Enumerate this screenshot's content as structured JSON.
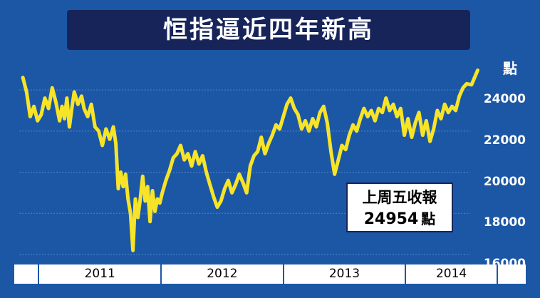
{
  "title": "恒指逼近四年新高",
  "unit_label": "點",
  "callout": {
    "line1": "上周五收報",
    "value": "24954",
    "unit": "點"
  },
  "colors": {
    "background": "#1c57a6",
    "title_box": "#17245a",
    "line": "#f7e428",
    "grid": "#4f86c6"
  },
  "chart_data": {
    "type": "line",
    "title": "恒指逼近四年新高",
    "ylabel": "點",
    "xlabel": "",
    "ylim": [
      16000,
      24800
    ],
    "xlim": [
      2010.77,
      2014.82
    ],
    "yticks": [
      16000,
      18000,
      20000,
      22000,
      24000
    ],
    "ytick_labels": [
      "16000",
      "18000",
      "20000",
      "22000",
      "24000"
    ],
    "xtick_labels": [
      "2011",
      "2012",
      "2013",
      "2014"
    ],
    "xtick_ranges": [
      [
        2010.93,
        2011.93
      ],
      [
        2011.93,
        2012.93
      ],
      [
        2012.93,
        2013.93
      ],
      [
        2013.93,
        2014.68
      ]
    ],
    "grid": "horizontal",
    "series": [
      {
        "values": [
          [
            2010.8,
            24600
          ],
          [
            2010.83,
            23900
          ],
          [
            2010.86,
            22700
          ],
          [
            2010.89,
            23200
          ],
          [
            2010.92,
            22500
          ],
          [
            2010.95,
            22800
          ],
          [
            2010.98,
            23600
          ],
          [
            2011.01,
            23100
          ],
          [
            2011.04,
            24100
          ],
          [
            2011.07,
            23400
          ],
          [
            2011.1,
            22500
          ],
          [
            2011.12,
            23200
          ],
          [
            2011.14,
            22600
          ],
          [
            2011.16,
            23600
          ],
          [
            2011.18,
            22200
          ],
          [
            2011.2,
            23100
          ],
          [
            2011.22,
            23900
          ],
          [
            2011.25,
            23300
          ],
          [
            2011.28,
            23700
          ],
          [
            2011.3,
            23100
          ],
          [
            2011.33,
            22700
          ],
          [
            2011.36,
            23300
          ],
          [
            2011.39,
            22200
          ],
          [
            2011.42,
            22000
          ],
          [
            2011.45,
            21300
          ],
          [
            2011.48,
            22100
          ],
          [
            2011.51,
            21600
          ],
          [
            2011.54,
            22200
          ],
          [
            2011.56,
            21400
          ],
          [
            2011.58,
            19200
          ],
          [
            2011.6,
            20000
          ],
          [
            2011.62,
            19300
          ],
          [
            2011.64,
            19900
          ],
          [
            2011.66,
            18700
          ],
          [
            2011.68,
            18000
          ],
          [
            2011.7,
            16200
          ],
          [
            2011.72,
            18700
          ],
          [
            2011.74,
            17800
          ],
          [
            2011.76,
            18700
          ],
          [
            2011.78,
            19800
          ],
          [
            2011.8,
            18600
          ],
          [
            2011.82,
            19300
          ],
          [
            2011.84,
            17600
          ],
          [
            2011.86,
            19100
          ],
          [
            2011.88,
            18100
          ],
          [
            2011.9,
            18700
          ],
          [
            2011.92,
            18500
          ],
          [
            2011.94,
            19000
          ],
          [
            2011.97,
            19600
          ],
          [
            2012.0,
            20100
          ],
          [
            2012.03,
            20700
          ],
          [
            2012.06,
            20900
          ],
          [
            2012.09,
            21300
          ],
          [
            2012.12,
            20600
          ],
          [
            2012.15,
            20900
          ],
          [
            2012.18,
            20300
          ],
          [
            2012.21,
            21000
          ],
          [
            2012.24,
            20400
          ],
          [
            2012.27,
            20800
          ],
          [
            2012.3,
            20000
          ],
          [
            2012.33,
            19400
          ],
          [
            2012.36,
            18800
          ],
          [
            2012.39,
            18300
          ],
          [
            2012.42,
            18600
          ],
          [
            2012.45,
            19200
          ],
          [
            2012.48,
            19600
          ],
          [
            2012.51,
            19000
          ],
          [
            2012.54,
            19400
          ],
          [
            2012.57,
            19900
          ],
          [
            2012.6,
            19500
          ],
          [
            2012.63,
            19000
          ],
          [
            2012.66,
            20300
          ],
          [
            2012.69,
            20800
          ],
          [
            2012.72,
            21000
          ],
          [
            2012.75,
            21700
          ],
          [
            2012.78,
            20900
          ],
          [
            2012.81,
            21400
          ],
          [
            2012.84,
            21800
          ],
          [
            2012.87,
            22300
          ],
          [
            2012.9,
            22100
          ],
          [
            2012.93,
            22700
          ],
          [
            2012.96,
            23300
          ],
          [
            2012.99,
            23600
          ],
          [
            2013.02,
            23100
          ],
          [
            2013.05,
            22800
          ],
          [
            2013.08,
            22100
          ],
          [
            2013.11,
            22500
          ],
          [
            2013.14,
            22000
          ],
          [
            2013.17,
            22600
          ],
          [
            2013.2,
            22200
          ],
          [
            2013.23,
            22900
          ],
          [
            2013.26,
            23200
          ],
          [
            2013.29,
            22400
          ],
          [
            2013.32,
            21000
          ],
          [
            2013.35,
            19900
          ],
          [
            2013.38,
            20600
          ],
          [
            2013.41,
            21300
          ],
          [
            2013.44,
            21100
          ],
          [
            2013.47,
            21800
          ],
          [
            2013.5,
            22300
          ],
          [
            2013.53,
            22000
          ],
          [
            2013.56,
            22600
          ],
          [
            2013.59,
            23100
          ],
          [
            2013.62,
            22700
          ],
          [
            2013.65,
            23000
          ],
          [
            2013.68,
            22500
          ],
          [
            2013.71,
            23100
          ],
          [
            2013.74,
            22900
          ],
          [
            2013.77,
            23600
          ],
          [
            2013.8,
            23000
          ],
          [
            2013.83,
            23300
          ],
          [
            2013.86,
            22700
          ],
          [
            2013.89,
            23100
          ],
          [
            2013.92,
            21800
          ],
          [
            2013.95,
            22600
          ],
          [
            2013.98,
            21700
          ],
          [
            2014.01,
            22400
          ],
          [
            2014.04,
            22900
          ],
          [
            2014.07,
            21800
          ],
          [
            2014.1,
            22500
          ],
          [
            2014.13,
            21500
          ],
          [
            2014.16,
            22100
          ],
          [
            2014.19,
            23000
          ],
          [
            2014.22,
            22600
          ],
          [
            2014.25,
            23300
          ],
          [
            2014.28,
            22900
          ],
          [
            2014.31,
            23200
          ],
          [
            2014.34,
            23000
          ],
          [
            2014.37,
            23700
          ],
          [
            2014.4,
            24100
          ],
          [
            2014.43,
            24300
          ],
          [
            2014.47,
            24250
          ],
          [
            2014.52,
            24954
          ]
        ]
      }
    ]
  }
}
